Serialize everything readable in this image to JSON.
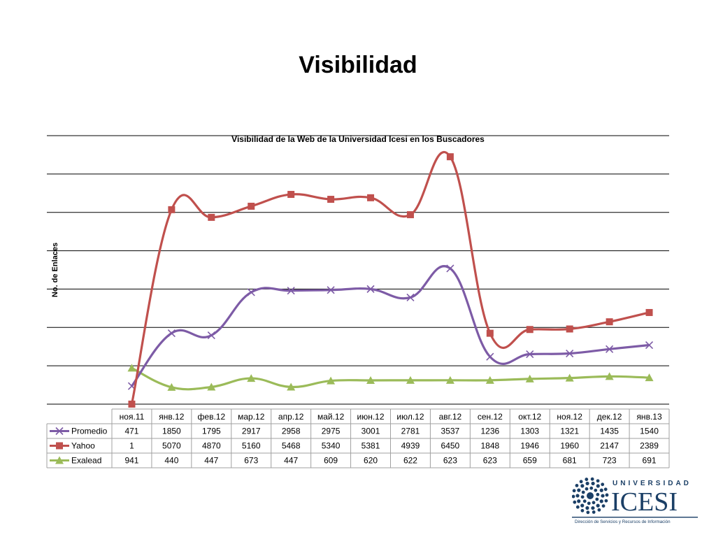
{
  "slide": {
    "title": "Visibilidad"
  },
  "chart_data": {
    "type": "line",
    "title": "Visibilidad de la Web de la Universidad Icesi en los Buscadores",
    "ylabel": "No. de Enlaces",
    "xlabel": "",
    "ylim": [
      0,
      7000
    ],
    "grid": true,
    "legend": "data-table-left",
    "categories": [
      "ноя.11",
      "янв.12",
      "фев.12",
      "мар.12",
      "апр.12",
      "май.12",
      "июн.12",
      "июл.12",
      "авг.12",
      "сен.12",
      "окт.12",
      "ноя.12",
      "дек.12",
      "янв.13"
    ],
    "series": [
      {
        "name": "Promedio",
        "color": "#7d5ba6",
        "marker": "x",
        "values": [
          471,
          1850,
          1795,
          2917,
          2958,
          2975,
          3001,
          2781,
          3537,
          1236,
          1303,
          1321,
          1435,
          1540
        ]
      },
      {
        "name": "Yahoo",
        "color": "#c0504d",
        "marker": "square",
        "values": [
          1,
          5070,
          4870,
          5160,
          5468,
          5340,
          5381,
          4939,
          6450,
          1848,
          1946,
          1960,
          2147,
          2389
        ]
      },
      {
        "name": "Exalead",
        "color": "#9bbb59",
        "marker": "triangle",
        "values": [
          941,
          440,
          447,
          673,
          447,
          609,
          620,
          622,
          623,
          623,
          659,
          681,
          723,
          691
        ]
      }
    ]
  },
  "logo": {
    "word_top": "UNIVERSIDAD",
    "word_main": "ICESI",
    "subtitle": "Dirección de Servicios y Recursos de Información",
    "brand_color": "#1b3f66"
  }
}
